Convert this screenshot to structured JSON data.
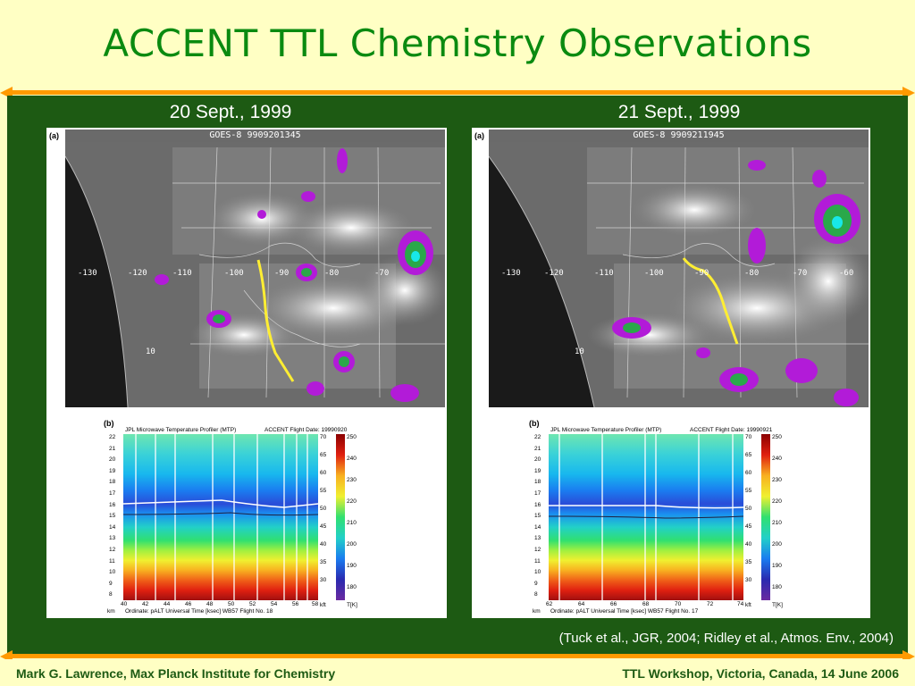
{
  "slide": {
    "title": "ACCENT TTL Chemistry Observations",
    "citation": "(Tuck et al., JGR, 2004; Ridley et al., Atmos. Env., 2004)",
    "footer_left": "Mark G. Lawrence, Max Planck Institute for Chemistry",
    "footer_right": "TTL Workshop, Victoria, Canada, 14 June 2006"
  },
  "panels": [
    {
      "date": "20 Sept., 1999",
      "sat_label": "(a)",
      "sat_header": "GOES-8 9909201345",
      "lon_labels": [
        "-130",
        "-120",
        "-110",
        "-100",
        "-90",
        "-80",
        "-70"
      ],
      "lat_label": "10",
      "mtp_label": "(b)",
      "mtp_title": "JPL Microwave Temperature Profiler (MTP)",
      "mtp_flight": "ACCENT Flight Date: 19990920",
      "mtp_x_ticks": [
        "40",
        "42",
        "44",
        "46",
        "48",
        "50",
        "52",
        "54",
        "56",
        "58"
      ],
      "mtp_footer": "Ordinate: pALT  Universal Time [ksec]          WB57 Flight No. 18",
      "mtp_km": "km",
      "mtp_kft": "kft",
      "mtp_tk": "T[K]"
    },
    {
      "date": "21 Sept., 1999",
      "sat_label": "(a)",
      "sat_header": "GOES-8 9909211945",
      "lon_labels": [
        "-130",
        "-120",
        "-110",
        "-100",
        "-90",
        "-80",
        "-70",
        "-60"
      ],
      "lat_label": "10",
      "mtp_label": "(b)",
      "mtp_title": "JPL Microwave Temperature Profiler (MTP)",
      "mtp_flight": "ACCENT Flight Date: 19990921",
      "mtp_x_ticks": [
        "62",
        "64",
        "66",
        "68",
        "70",
        "72",
        "74"
      ],
      "mtp_footer": "Ordinate: pALT  Universal Time [ksec]          WB57 Flight No. 17",
      "mtp_km": "km",
      "mtp_kft": "kft",
      "mtp_tk": "T[K]"
    }
  ],
  "mtp_axis": {
    "km": [
      "22",
      "21",
      "20",
      "19",
      "18",
      "17",
      "16",
      "15",
      "14",
      "13",
      "12",
      "11",
      "10",
      "9",
      "8"
    ],
    "kft": [
      "70",
      "65",
      "60",
      "55",
      "50",
      "45",
      "40",
      "35",
      "30"
    ],
    "temp": [
      "250",
      "240",
      "230",
      "220",
      "210",
      "200",
      "190",
      "180"
    ]
  },
  "colors": {
    "background_green": "#1d5a13",
    "title_green": "#0a8a10",
    "slide_yellow": "#ffffc4",
    "accent_orange": "#ff9a00",
    "flight_track": "#ffee33"
  }
}
